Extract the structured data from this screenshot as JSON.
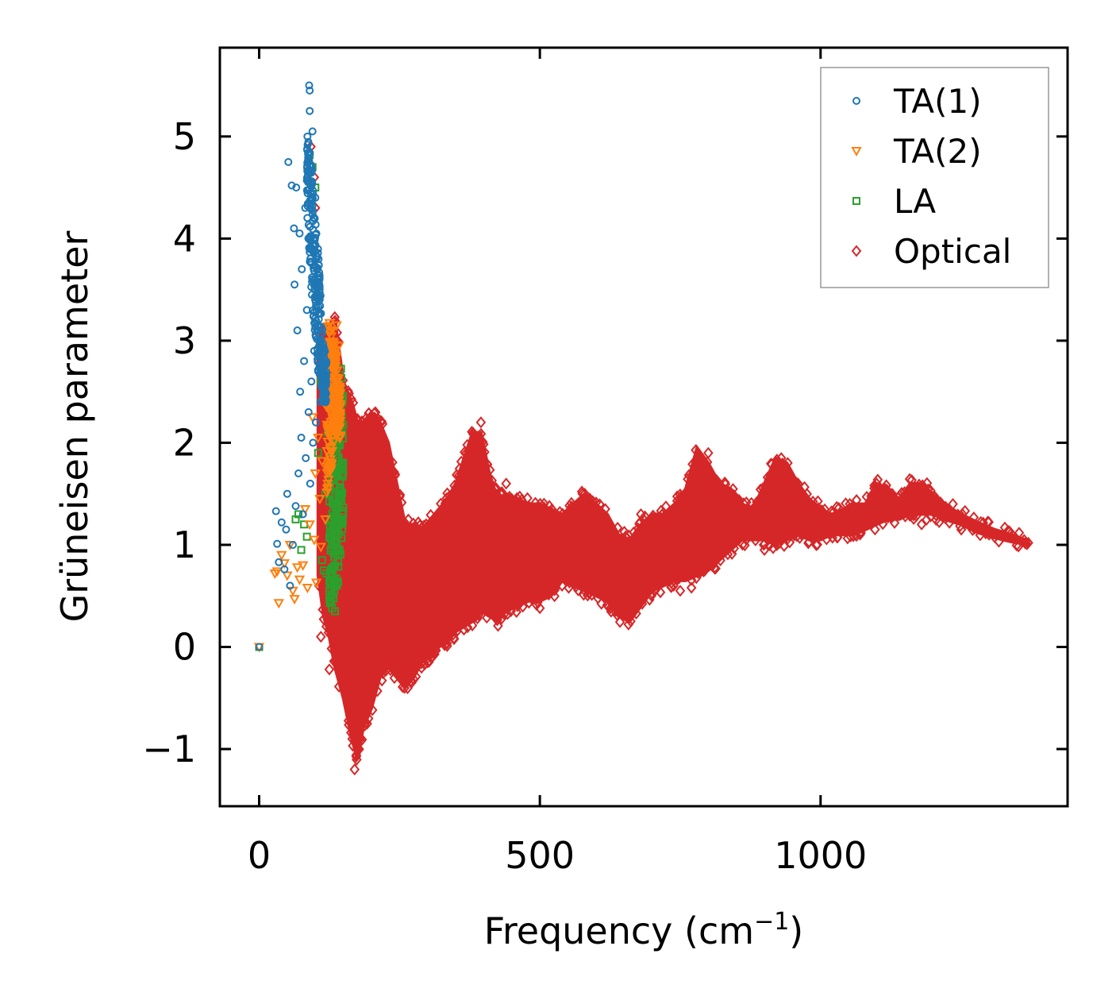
{
  "chart_data": {
    "type": "scatter",
    "title": "",
    "xlabel": "Frequency (cm",
    "xlabel_sup": "−1",
    "xlabel_end": ")",
    "ylabel": "Grüneisen parameter",
    "xlim": [
      -70,
      1440
    ],
    "ylim": [
      -1.56,
      5.87
    ],
    "xticks": [
      0,
      500,
      1000
    ],
    "xtick_labels": [
      "0",
      "500",
      "1000"
    ],
    "yticks": [
      -1,
      0,
      1,
      2,
      3,
      4,
      5
    ],
    "ytick_labels": [
      "−1",
      "0",
      "1",
      "2",
      "3",
      "4",
      "5"
    ],
    "grid": false,
    "legend_position": "top-right",
    "series": [
      {
        "name": "TA(1)",
        "color": "#1f77b4",
        "marker": "circle",
        "points": [
          [
            0,
            0
          ],
          [
            30,
            1.33
          ],
          [
            32,
            1.01
          ],
          [
            35,
            0.83
          ],
          [
            40,
            1.22
          ],
          [
            45,
            0.76
          ],
          [
            48,
            1.15
          ],
          [
            50,
            1.5
          ],
          [
            52,
            4.75
          ],
          [
            55,
            0.6
          ],
          [
            58,
            4.52
          ],
          [
            60,
            1.0
          ],
          [
            62,
            4.1
          ],
          [
            63,
            3.55
          ],
          [
            65,
            1.38
          ],
          [
            66,
            4.5
          ],
          [
            68,
            3.1
          ],
          [
            70,
            1.7
          ],
          [
            72,
            4.05
          ],
          [
            73,
            2.5
          ],
          [
            75,
            2.05
          ],
          [
            76,
            3.7
          ],
          [
            78,
            1.3
          ],
          [
            80,
            2.8
          ],
          [
            82,
            4.3
          ],
          [
            83,
            1.85
          ],
          [
            85,
            3.3
          ],
          [
            86,
            5.0
          ],
          [
            88,
            2.3
          ],
          [
            89,
            5.5
          ],
          [
            90,
            5.45
          ],
          [
            90,
            5.25
          ],
          [
            91,
            1.6
          ],
          [
            92,
            4.0
          ],
          [
            93,
            2.6
          ],
          [
            94,
            3.45
          ],
          [
            95,
            5.05
          ],
          [
            96,
            2.0
          ],
          [
            97,
            4.2
          ],
          [
            98,
            2.9
          ],
          [
            99,
            3.6
          ],
          [
            100,
            4.4
          ],
          [
            101,
            2.2
          ],
          [
            102,
            3.8
          ],
          [
            103,
            3.1
          ],
          [
            105,
            2.7
          ],
          [
            107,
            3.4
          ],
          [
            109,
            2.4
          ],
          [
            111,
            3.0
          ],
          [
            113,
            2.55
          ],
          [
            115,
            2.75
          ],
          [
            118,
            2.5
          ]
        ],
        "bands": [
          [
            85,
            5.0,
            4.2
          ],
          [
            90,
            4.9,
            3.8
          ],
          [
            95,
            4.6,
            3.3
          ],
          [
            100,
            4.2,
            3.0
          ],
          [
            105,
            3.9,
            2.7
          ],
          [
            110,
            3.4,
            2.5
          ],
          [
            115,
            3.0,
            2.35
          ],
          [
            120,
            2.8,
            2.35
          ]
        ]
      },
      {
        "name": "TA(2)",
        "color": "#ff7f0e",
        "marker": "triangle-down",
        "points": [
          [
            0,
            0
          ],
          [
            28,
            0.72
          ],
          [
            32,
            0.74
          ],
          [
            35,
            0.43
          ],
          [
            40,
            0.9
          ],
          [
            45,
            0.82
          ],
          [
            50,
            0.7
          ],
          [
            55,
            1.0
          ],
          [
            60,
            0.55
          ],
          [
            63,
            0.47
          ],
          [
            68,
            0.78
          ],
          [
            72,
            0.66
          ],
          [
            78,
            0.8
          ],
          [
            82,
            1.35
          ],
          [
            86,
            0.58
          ],
          [
            90,
            1.2
          ],
          [
            95,
            2.25
          ],
          [
            98,
            1.05
          ],
          [
            100,
            1.7
          ],
          [
            102,
            0.63
          ],
          [
            105,
            2.05
          ],
          [
            108,
            1.45
          ],
          [
            110,
            0.98
          ],
          [
            112,
            1.82
          ],
          [
            115,
            2.4
          ],
          [
            118,
            1.25
          ],
          [
            120,
            2.6
          ],
          [
            122,
            1.6
          ],
          [
            125,
            2.9
          ],
          [
            128,
            1.95
          ],
          [
            130,
            3.1
          ],
          [
            133,
            2.3
          ],
          [
            136,
            2.75
          ],
          [
            138,
            3.15
          ],
          [
            140,
            2.5
          ],
          [
            142,
            2.95
          ]
        ],
        "bands": [
          [
            120,
            3.2,
            1.5
          ],
          [
            125,
            3.2,
            1.6
          ],
          [
            130,
            3.1,
            1.8
          ],
          [
            135,
            3.0,
            2.0
          ],
          [
            140,
            2.8,
            2.1
          ],
          [
            145,
            2.5,
            2.0
          ]
        ]
      },
      {
        "name": "LA",
        "color": "#2ca02c",
        "marker": "square",
        "points": [
          [
            0,
            0
          ],
          [
            65,
            1.25
          ],
          [
            70,
            1.3
          ],
          [
            75,
            0.95
          ],
          [
            80,
            1.2
          ],
          [
            85,
            1.08
          ],
          [
            90,
            4.82
          ],
          [
            95,
            4.7
          ],
          [
            100,
            4.5
          ],
          [
            102,
            3.45
          ],
          [
            105,
            1.9
          ],
          [
            108,
            2.95
          ],
          [
            110,
            2.6
          ],
          [
            112,
            0.85
          ],
          [
            115,
            0.75
          ],
          [
            118,
            1.5
          ],
          [
            120,
            0.72
          ],
          [
            122,
            2.1
          ],
          [
            125,
            0.55
          ],
          [
            128,
            0.45
          ],
          [
            130,
            0.38
          ],
          [
            132,
            0.62
          ],
          [
            135,
            0.35
          ]
        ],
        "bands": [
          [
            125,
            1.8,
            0.4
          ],
          [
            130,
            2.0,
            0.45
          ],
          [
            135,
            2.2,
            0.5
          ],
          [
            140,
            2.5,
            0.6
          ],
          [
            145,
            2.8,
            0.9
          ],
          [
            150,
            2.4,
            1.3
          ]
        ]
      },
      {
        "name": "Optical",
        "color": "#d62728",
        "marker": "diamond",
        "points": [
          [
            92,
            4.9
          ],
          [
            98,
            4.6
          ],
          [
            100,
            4.3
          ],
          [
            110,
            0.1
          ],
          [
            125,
            -0.22
          ],
          [
            135,
            -0.15
          ],
          [
            140,
            0.0
          ],
          [
            150,
            -0.05
          ],
          [
            170,
            -1.2
          ],
          [
            175,
            -1.0
          ],
          [
            180,
            -0.9
          ],
          [
            200,
            -0.4
          ],
          [
            230,
            -0.1
          ],
          [
            260,
            -0.3
          ],
          [
            275,
            -0.2
          ],
          [
            300,
            -0.15
          ],
          [
            330,
            0.05
          ],
          [
            345,
            0.15
          ],
          [
            355,
            0.22
          ],
          [
            360,
            0.4
          ],
          [
            375,
            1.42
          ],
          [
            395,
            2.2
          ],
          [
            420,
            1.35
          ],
          [
            430,
            1.5
          ],
          [
            440,
            1.6
          ],
          [
            450,
            1.45
          ],
          [
            480,
            1.38
          ],
          [
            500,
            0.38
          ],
          [
            520,
            1.3
          ],
          [
            540,
            0.78
          ],
          [
            560,
            0.62
          ],
          [
            580,
            1.5
          ],
          [
            600,
            0.62
          ],
          [
            620,
            1.2
          ],
          [
            630,
            0.7
          ],
          [
            680,
            1.3
          ],
          [
            700,
            0.9
          ],
          [
            720,
            1.15
          ],
          [
            750,
            0.55
          ],
          [
            770,
            0.58
          ],
          [
            800,
            1.9
          ],
          [
            820,
            1.55
          ],
          [
            850,
            1.35
          ],
          [
            900,
            0.95
          ],
          [
            930,
            1.85
          ],
          [
            960,
            1.6
          ],
          [
            980,
            1.3
          ],
          [
            1000,
            1.2
          ],
          [
            1050,
            1.28
          ],
          [
            1080,
            1.2
          ],
          [
            1100,
            1.6
          ],
          [
            1130,
            1.38
          ],
          [
            1180,
            1.2
          ],
          [
            1220,
            1.3
          ],
          [
            1300,
            1.1
          ],
          [
            1370,
            1.02
          ]
        ],
        "envelope": [
          [
            105,
            3.0,
            0.7
          ],
          [
            115,
            3.1,
            0.3
          ],
          [
            125,
            3.0,
            0.1
          ],
          [
            135,
            3.2,
            -0.2
          ],
          [
            150,
            2.6,
            -0.5
          ],
          [
            165,
            2.4,
            -0.9
          ],
          [
            175,
            2.2,
            -1.1
          ],
          [
            185,
            2.2,
            -0.8
          ],
          [
            200,
            2.3,
            -0.6
          ],
          [
            215,
            2.2,
            -0.3
          ],
          [
            230,
            2.0,
            -0.2
          ],
          [
            245,
            1.6,
            -0.3
          ],
          [
            260,
            1.2,
            -0.4
          ],
          [
            275,
            1.2,
            -0.3
          ],
          [
            290,
            1.15,
            -0.15
          ],
          [
            305,
            1.25,
            -0.1
          ],
          [
            320,
            1.35,
            0.0
          ],
          [
            335,
            1.45,
            0.05
          ],
          [
            350,
            1.6,
            0.15
          ],
          [
            365,
            1.85,
            0.2
          ],
          [
            380,
            2.1,
            0.25
          ],
          [
            395,
            2.1,
            0.35
          ],
          [
            410,
            1.7,
            0.3
          ],
          [
            425,
            1.45,
            0.25
          ],
          [
            440,
            1.5,
            0.35
          ],
          [
            460,
            1.45,
            0.4
          ],
          [
            480,
            1.4,
            0.45
          ],
          [
            500,
            1.4,
            0.45
          ],
          [
            520,
            1.35,
            0.5
          ],
          [
            540,
            1.3,
            0.65
          ],
          [
            560,
            1.4,
            0.6
          ],
          [
            580,
            1.5,
            0.55
          ],
          [
            600,
            1.4,
            0.5
          ],
          [
            620,
            1.3,
            0.45
          ],
          [
            640,
            1.1,
            0.3
          ],
          [
            660,
            1.05,
            0.25
          ],
          [
            680,
            1.2,
            0.4
          ],
          [
            700,
            1.3,
            0.55
          ],
          [
            720,
            1.3,
            0.6
          ],
          [
            740,
            1.4,
            0.65
          ],
          [
            760,
            1.55,
            0.65
          ],
          [
            780,
            1.95,
            0.7
          ],
          [
            800,
            1.8,
            0.75
          ],
          [
            820,
            1.6,
            0.85
          ],
          [
            840,
            1.55,
            0.95
          ],
          [
            860,
            1.4,
            1.05
          ],
          [
            880,
            1.35,
            1.05
          ],
          [
            900,
            1.6,
            1.05
          ],
          [
            920,
            1.85,
            1.0
          ],
          [
            940,
            1.8,
            1.05
          ],
          [
            960,
            1.6,
            1.1
          ],
          [
            980,
            1.45,
            1.05
          ],
          [
            1000,
            1.35,
            1.05
          ],
          [
            1020,
            1.3,
            1.1
          ],
          [
            1040,
            1.35,
            1.1
          ],
          [
            1060,
            1.4,
            1.1
          ],
          [
            1080,
            1.4,
            1.15
          ],
          [
            1100,
            1.6,
            1.2
          ],
          [
            1120,
            1.55,
            1.25
          ],
          [
            1140,
            1.45,
            1.25
          ],
          [
            1160,
            1.6,
            1.3
          ],
          [
            1180,
            1.6,
            1.3
          ],
          [
            1200,
            1.5,
            1.3
          ],
          [
            1220,
            1.4,
            1.25
          ],
          [
            1250,
            1.3,
            1.2
          ],
          [
            1280,
            1.22,
            1.12
          ],
          [
            1310,
            1.15,
            1.07
          ],
          [
            1340,
            1.1,
            1.03
          ],
          [
            1370,
            1.04,
            1.0
          ]
        ]
      }
    ]
  }
}
